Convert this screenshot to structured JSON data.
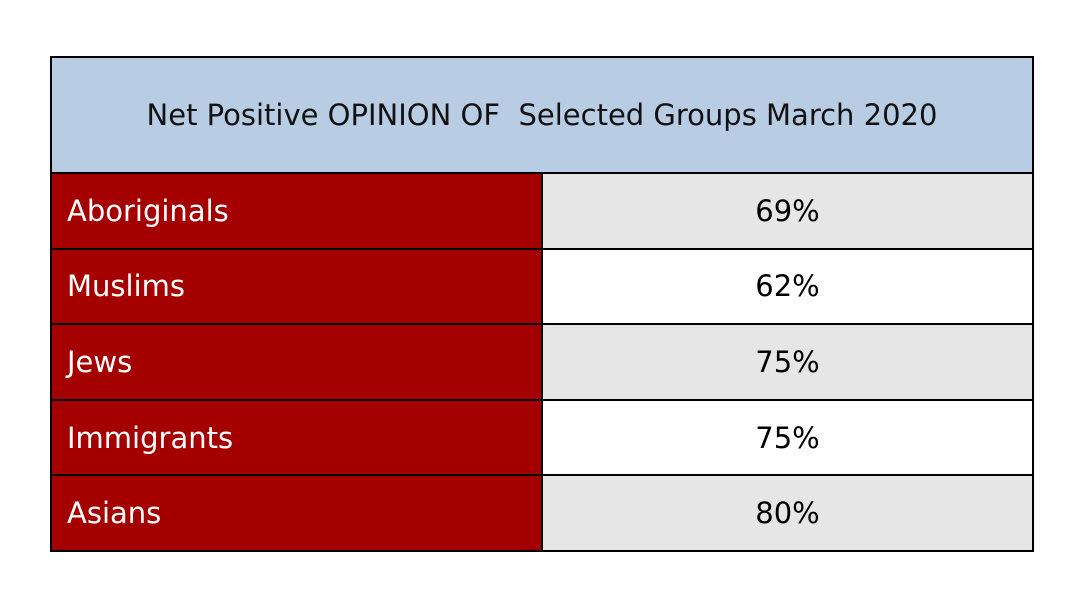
{
  "table": {
    "title": "Net Positive OPINION OF  Selected Groups March 2020",
    "rows": [
      [
        "Aboriginals",
        "69%"
      ],
      [
        "Muslims",
        "62%"
      ],
      [
        "Jews",
        "75%"
      ],
      [
        "Immigrants",
        "75%"
      ],
      [
        "Asians",
        "80%"
      ]
    ]
  }
}
